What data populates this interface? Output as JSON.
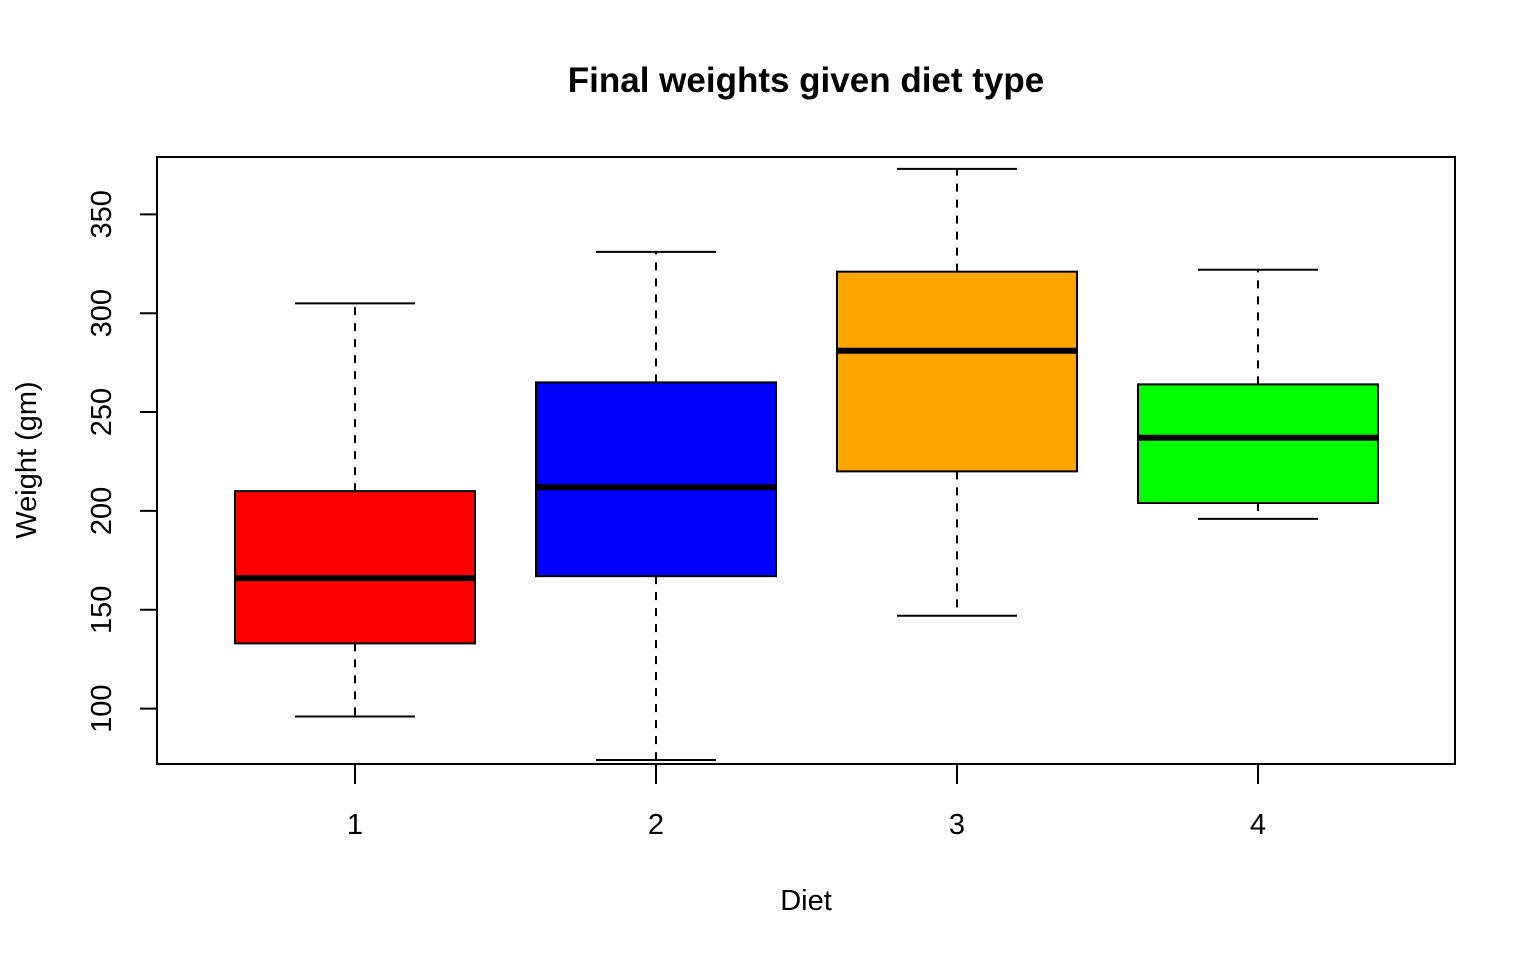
{
  "chart_data": {
    "type": "boxplot",
    "title": "Final weights given diet type",
    "xlabel": "Diet",
    "ylabel": "Weight (gm)",
    "ylim": [
      72,
      379
    ],
    "yticks": [
      100,
      150,
      200,
      250,
      300,
      350
    ],
    "categories": [
      "1",
      "2",
      "3",
      "4"
    ],
    "grid": false,
    "legend": "none",
    "boxes": [
      {
        "category": "1",
        "min": 96,
        "q1": 133,
        "median": 166,
        "q3": 210,
        "max": 305,
        "color": "#FF0000"
      },
      {
        "category": "2",
        "min": 74,
        "q1": 167,
        "median": 212,
        "q3": 265,
        "max": 331,
        "color": "#0000FF"
      },
      {
        "category": "3",
        "min": 147,
        "q1": 220,
        "median": 281,
        "q3": 321,
        "max": 373,
        "color": "#FFA500"
      },
      {
        "category": "4",
        "min": 196,
        "q1": 204,
        "median": 237,
        "q3": 264,
        "max": 322,
        "color": "#00FF00"
      }
    ]
  }
}
